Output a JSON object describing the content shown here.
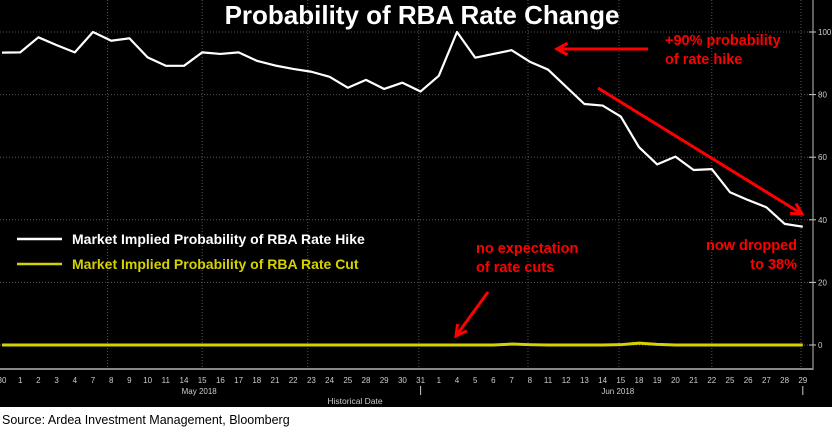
{
  "chart_data": {
    "type": "line",
    "title": "Probability of RBA Rate Change",
    "xlabel": "Historical Date",
    "ylabel": "",
    "ylim": [
      0,
      100
    ],
    "yticks": [
      0,
      20,
      40,
      60,
      80,
      100
    ],
    "x": [
      "30",
      "1",
      "2",
      "3",
      "4",
      "7",
      "8",
      "9",
      "10",
      "11",
      "14",
      "15",
      "16",
      "17",
      "18",
      "21",
      "22",
      "23",
      "24",
      "25",
      "28",
      "29",
      "30",
      "31",
      "1",
      "4",
      "5",
      "6",
      "7",
      "8",
      "11",
      "12",
      "13",
      "14",
      "15",
      "18",
      "19",
      "20",
      "21",
      "22",
      "25",
      "26",
      "27",
      "28",
      "29"
    ],
    "month_labels": [
      {
        "label": "May 2018",
        "at_index": 11
      },
      {
        "label": "Jun 2018",
        "at_index": 34
      }
    ],
    "series": [
      {
        "name": "Market Implied Probability  of RBA Rate Hike",
        "color": "#ffffff",
        "values": [
          93.4,
          93.5,
          98.3,
          95.8,
          93.5,
          100,
          97.2,
          98,
          91.9,
          89.2,
          89.2,
          93.5,
          93,
          93.5,
          90.8,
          89.3,
          88.2,
          87.3,
          85.7,
          82.2,
          84.7,
          81.8,
          83.8,
          81,
          86,
          100,
          91.8,
          93,
          94.2,
          90.5,
          88,
          82.5,
          77,
          76.5,
          73,
          63.2,
          57.7,
          60.2,
          55.9,
          56.2,
          48.8,
          46.3,
          44,
          38.7,
          37.8
        ]
      },
      {
        "name": "Market Implied Probability  of RBA Rate Cut",
        "color": "#d6d200",
        "values": [
          0,
          0,
          0,
          0,
          0,
          0,
          0,
          0,
          0,
          0,
          0,
          0,
          0,
          0,
          0,
          0,
          0,
          0,
          0,
          0,
          0,
          0,
          0,
          0,
          0,
          0,
          0,
          0,
          0.3,
          0.1,
          0,
          0,
          0,
          0,
          0.1,
          0.6,
          0.2,
          0,
          0,
          0,
          0,
          0,
          0,
          0,
          0
        ]
      }
    ],
    "annotations": [
      "+90% probability",
      "of rate hike",
      "now dropped",
      "to 38%",
      "no expectation",
      "of rate cuts"
    ],
    "annotation_color": "#ff0000",
    "legend_position": "left-middle",
    "grid": true
  },
  "source": "Source: Ardea Investment Management, Bloomberg"
}
